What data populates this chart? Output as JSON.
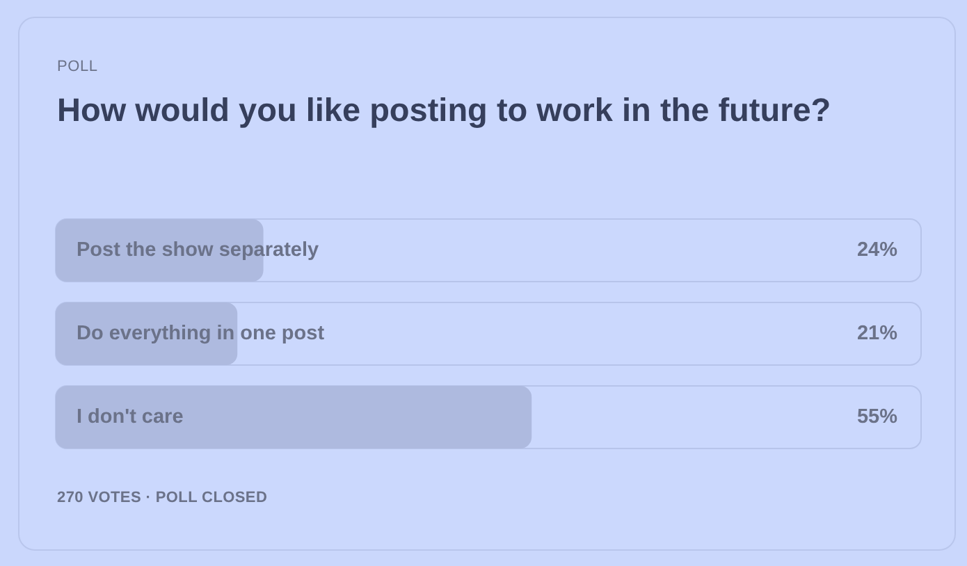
{
  "chart_data": {
    "type": "bar",
    "orientation": "horizontal",
    "title": "How would you like posting to work in the future?",
    "annotations": [
      "POLL",
      "270 VOTES · POLL CLOSED"
    ],
    "categories": [
      "Post the show separately",
      "Do everything in one post",
      "I don't care"
    ],
    "values": [
      24,
      21,
      55
    ],
    "value_labels": [
      "24%",
      "21%",
      "55%"
    ],
    "color": "#aebadf",
    "xlim": [
      0,
      100
    ],
    "tick_labels": "y"
  }
}
